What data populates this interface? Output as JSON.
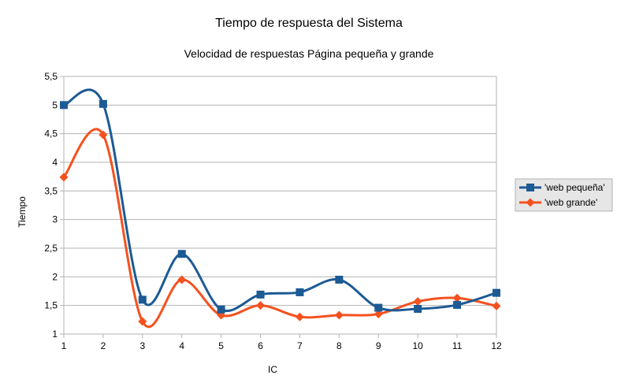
{
  "chart_data": {
    "type": "line",
    "title": "Tiempo de respuesta del Sistema",
    "subtitle": "Velocidad de respuestas Página pequeña y grande",
    "xlabel": "IC",
    "ylabel": "Tiempo",
    "x": [
      1,
      2,
      3,
      4,
      5,
      6,
      7,
      8,
      9,
      10,
      11,
      12
    ],
    "x_tick_labels": [
      "1",
      "2",
      "3",
      "4",
      "5",
      "6",
      "7",
      "8",
      "9",
      "10",
      "11",
      "12"
    ],
    "ylim": [
      1,
      5.5
    ],
    "y_ticks": [
      1,
      1.5,
      2,
      2.5,
      3,
      3.5,
      4,
      4.5,
      5,
      5.5
    ],
    "y_tick_labels": [
      "1",
      "1,5",
      "2",
      "2,5",
      "3",
      "3,5",
      "4",
      "4,5",
      "5",
      "5,5"
    ],
    "grid": true,
    "smooth": true,
    "legend_position": "right",
    "series": [
      {
        "name": "'web pequeña'",
        "color": "#1c5a94",
        "marker": "square",
        "values": [
          5.0,
          5.02,
          1.6,
          2.4,
          1.43,
          1.69,
          1.73,
          1.95,
          1.46,
          1.44,
          1.51,
          1.72
        ]
      },
      {
        "name": "'web grande'",
        "color": "#f4511e",
        "marker": "diamond",
        "values": [
          3.74,
          4.48,
          1.22,
          1.95,
          1.33,
          1.5,
          1.3,
          1.33,
          1.35,
          1.57,
          1.63,
          1.49
        ]
      }
    ]
  }
}
